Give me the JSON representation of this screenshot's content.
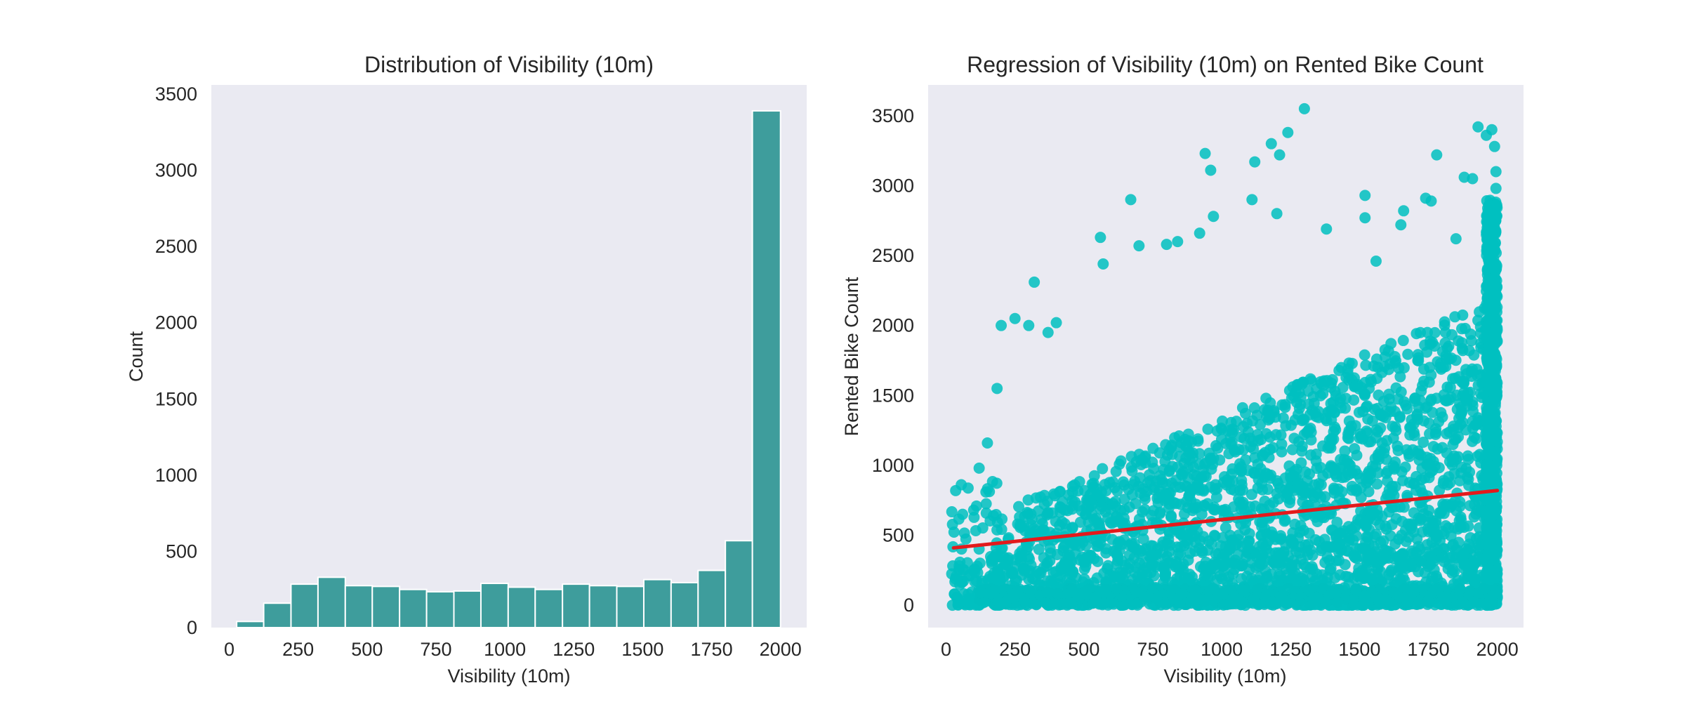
{
  "chart_data": [
    {
      "type": "bar",
      "title": "Distribution of Visibility (10m)",
      "xlabel": "Visibility (10m)",
      "ylabel": "Count",
      "xlim": [
        -65,
        2095
      ],
      "ylim": [
        0,
        3560
      ],
      "xticks": [
        0,
        250,
        500,
        750,
        1000,
        1250,
        1500,
        1750,
        2000
      ],
      "yticks": [
        0,
        500,
        1000,
        1500,
        2000,
        2500,
        3000,
        3500
      ],
      "grid": false,
      "background": "#eaeaf2",
      "bar_color": "#3e9d9c",
      "bins": [
        {
          "start": 27,
          "end": 125,
          "count": 40
        },
        {
          "start": 125,
          "end": 224,
          "count": 160
        },
        {
          "start": 224,
          "end": 322,
          "count": 285
        },
        {
          "start": 322,
          "end": 421,
          "count": 330
        },
        {
          "start": 421,
          "end": 519,
          "count": 275
        },
        {
          "start": 519,
          "end": 618,
          "count": 270
        },
        {
          "start": 618,
          "end": 716,
          "count": 250
        },
        {
          "start": 716,
          "end": 815,
          "count": 235
        },
        {
          "start": 815,
          "end": 913,
          "count": 240
        },
        {
          "start": 913,
          "end": 1012,
          "count": 290
        },
        {
          "start": 1012,
          "end": 1110,
          "count": 265
        },
        {
          "start": 1110,
          "end": 1209,
          "count": 250
        },
        {
          "start": 1209,
          "end": 1307,
          "count": 285
        },
        {
          "start": 1307,
          "end": 1406,
          "count": 275
        },
        {
          "start": 1406,
          "end": 1504,
          "count": 270
        },
        {
          "start": 1504,
          "end": 1603,
          "count": 315
        },
        {
          "start": 1603,
          "end": 1701,
          "count": 295
        },
        {
          "start": 1701,
          "end": 1800,
          "count": 375
        },
        {
          "start": 1800,
          "end": 1898,
          "count": 570
        },
        {
          "start": 1898,
          "end": 2000,
          "count": 3390
        }
      ]
    },
    {
      "type": "scatter",
      "title": "Regression of Visibility (10m) on Rented Bike Count",
      "xlabel": "Visibility (10m)",
      "ylabel": "Rented Bike Count",
      "xlim": [
        -65,
        2095
      ],
      "ylim": [
        -160,
        3720
      ],
      "xticks": [
        0,
        250,
        500,
        750,
        1000,
        1250,
        1500,
        1750,
        2000
      ],
      "yticks": [
        0,
        500,
        1000,
        1500,
        2000,
        2500,
        3000,
        3500
      ],
      "grid": false,
      "background": "#eaeaf2",
      "point_color": "#00bfbf",
      "line_color": "#e31a1c",
      "regression_line": {
        "x": [
          27,
          2000
        ],
        "y": [
          410,
          820
        ]
      },
      "outlier_points": [
        {
          "x": 30,
          "y": 80
        },
        {
          "x": 60,
          "y": 650
        },
        {
          "x": 100,
          "y": 680
        },
        {
          "x": 120,
          "y": 980
        },
        {
          "x": 150,
          "y": 1160
        },
        {
          "x": 185,
          "y": 1550
        },
        {
          "x": 200,
          "y": 2000
        },
        {
          "x": 250,
          "y": 2050
        },
        {
          "x": 300,
          "y": 2000
        },
        {
          "x": 320,
          "y": 2310
        },
        {
          "x": 370,
          "y": 1950
        },
        {
          "x": 400,
          "y": 2020
        },
        {
          "x": 560,
          "y": 2630
        },
        {
          "x": 570,
          "y": 2440
        },
        {
          "x": 670,
          "y": 2900
        },
        {
          "x": 700,
          "y": 2570
        },
        {
          "x": 800,
          "y": 2580
        },
        {
          "x": 840,
          "y": 2600
        },
        {
          "x": 920,
          "y": 2660
        },
        {
          "x": 940,
          "y": 3230
        },
        {
          "x": 960,
          "y": 3110
        },
        {
          "x": 970,
          "y": 2780
        },
        {
          "x": 1110,
          "y": 2900
        },
        {
          "x": 1120,
          "y": 3170
        },
        {
          "x": 1180,
          "y": 3300
        },
        {
          "x": 1200,
          "y": 2800
        },
        {
          "x": 1240,
          "y": 3380
        },
        {
          "x": 1300,
          "y": 3550
        },
        {
          "x": 1210,
          "y": 3220
        },
        {
          "x": 1380,
          "y": 2690
        },
        {
          "x": 1520,
          "y": 2930
        },
        {
          "x": 1520,
          "y": 2770
        },
        {
          "x": 1560,
          "y": 2460
        },
        {
          "x": 1660,
          "y": 2820
        },
        {
          "x": 1650,
          "y": 2720
        },
        {
          "x": 1740,
          "y": 2910
        },
        {
          "x": 1760,
          "y": 2890
        },
        {
          "x": 1780,
          "y": 3220
        },
        {
          "x": 1850,
          "y": 2620
        },
        {
          "x": 1880,
          "y": 3060
        },
        {
          "x": 1910,
          "y": 3050
        },
        {
          "x": 1930,
          "y": 3420
        },
        {
          "x": 1960,
          "y": 3360
        },
        {
          "x": 1980,
          "y": 3400
        },
        {
          "x": 1990,
          "y": 3280
        },
        {
          "x": 1995,
          "y": 3100
        },
        {
          "x": 1995,
          "y": 2980
        },
        {
          "x": 1998,
          "y": 2860
        }
      ]
    }
  ]
}
